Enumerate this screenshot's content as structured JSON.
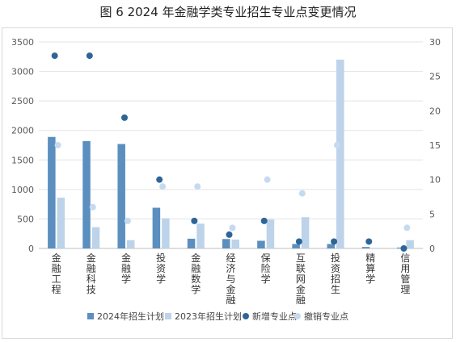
{
  "title": "图 6  2024 年金融学类专业招生专业点变更情况",
  "colors": {
    "plan2024": "#5b8fbf",
    "plan2023": "#bcd3ea",
    "new_points": "#2e6599",
    "removed_points": "#c6daef"
  },
  "chart_data": {
    "type": "bar",
    "categories": [
      "金融工程",
      "金融科技",
      "金融学",
      "投资学",
      "金融数学",
      "经济与金融",
      "保险学",
      "互联网金融",
      "投资招生",
      "精算学",
      "信用管理"
    ],
    "series": [
      {
        "name": "2024年招生计划",
        "axis": "left",
        "kind": "bar",
        "values": [
          1890,
          1820,
          1770,
          690,
          165,
          160,
          130,
          75,
          75,
          25,
          15
        ]
      },
      {
        "name": "2023年招生计划",
        "axis": "left",
        "kind": "bar",
        "values": [
          860,
          360,
          140,
          510,
          420,
          150,
          490,
          530,
          3200,
          10,
          140
        ]
      },
      {
        "name": "新增专业点",
        "axis": "right",
        "kind": "point",
        "values": [
          28,
          28,
          19,
          10,
          4,
          2,
          4,
          1,
          1,
          1,
          0
        ]
      },
      {
        "name": "撤销专业点",
        "axis": "right",
        "kind": "point",
        "values": [
          15,
          6,
          4,
          9,
          9,
          3,
          10,
          8,
          15,
          null,
          3
        ]
      }
    ],
    "y_left": {
      "min": 0,
      "max": 3500,
      "ticks": [
        0,
        500,
        1000,
        1500,
        2000,
        2500,
        3000,
        3500
      ]
    },
    "y_right": {
      "min": 0,
      "max": 30,
      "ticks": [
        0,
        5,
        10,
        15,
        20,
        25,
        30
      ]
    },
    "grid": true,
    "legend_position": "bottom"
  }
}
